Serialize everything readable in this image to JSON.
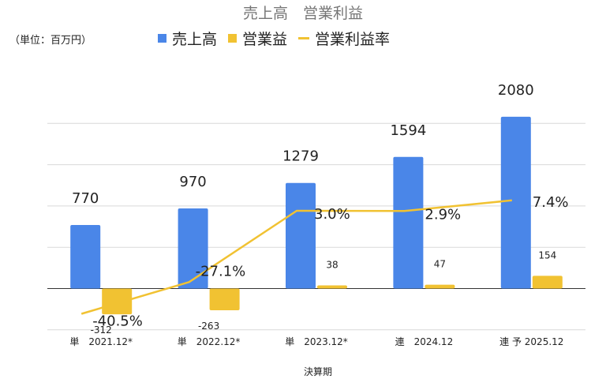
{
  "chart_data": {
    "type": "bar",
    "title": "売上高　営業利益",
    "unit_label": "（単位：百万円）",
    "xlabel": "決算期",
    "ylabel": "",
    "categories": [
      "単　2021.12*",
      "単　2022.12*",
      "単　2023.12*",
      "連　2024.12",
      "連 予 2025.12"
    ],
    "ylim": [
      -500,
      2500
    ],
    "grid": true,
    "legend_position": "top",
    "series": [
      {
        "name": "売上高",
        "kind": "bar",
        "color": "#4a86e8",
        "values": [
          770,
          970,
          1279,
          1594,
          2080
        ],
        "labels": [
          "770",
          "970",
          "1279",
          "1594",
          "2080"
        ]
      },
      {
        "name": "営業益",
        "kind": "bar",
        "color": "#f1c232",
        "values": [
          -312,
          -263,
          38,
          47,
          154
        ],
        "labels": [
          "-312",
          "-263",
          "38",
          "47",
          "154"
        ]
      },
      {
        "name": "営業利益率",
        "kind": "line",
        "color": "#f1c232",
        "values": [
          -40.5,
          -27.1,
          3.0,
          2.9,
          7.4
        ],
        "labels": [
          "-40.5%",
          "-27.1%",
          "3.0%",
          "2.9%",
          "7.4%"
        ]
      }
    ]
  }
}
